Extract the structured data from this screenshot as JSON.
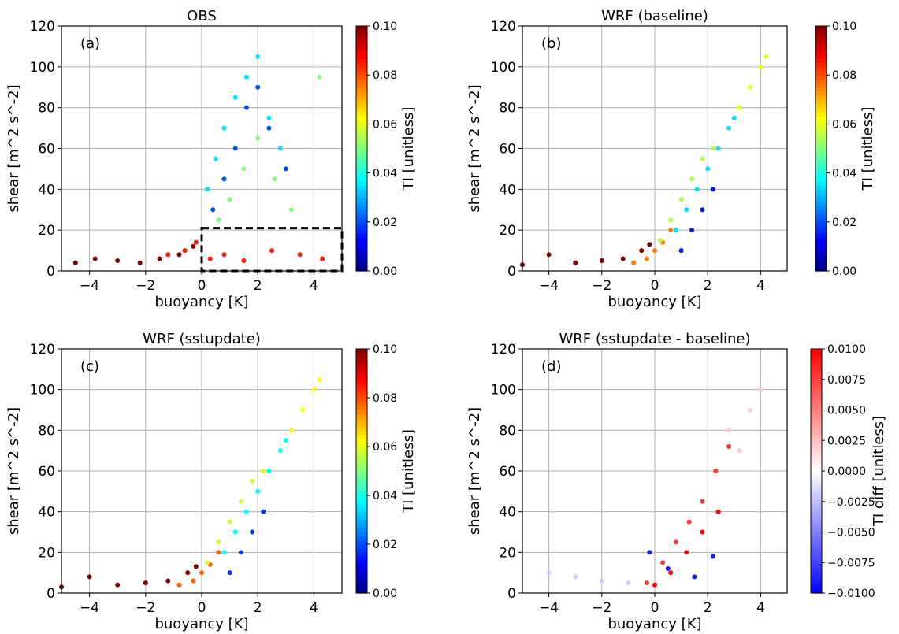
{
  "chart_data": [
    {
      "panel": "(a)",
      "title": "OBS",
      "type": "scatter",
      "xlabel": "buoyancy [K]",
      "ylabel": "shear [m^2 s^-2]",
      "xlim": [
        -5,
        5
      ],
      "ylim": [
        0,
        120
      ],
      "xticks": [
        "−4",
        "−2",
        "0",
        "2",
        "4"
      ],
      "yticks": [
        "0",
        "20",
        "40",
        "60",
        "80",
        "100",
        "120"
      ],
      "grid": true,
      "colorbar": {
        "label": "TI [unitless]",
        "min": 0.0,
        "max": 0.1,
        "colormap": "jet",
        "ticks": [
          "0.00",
          "0.02",
          "0.04",
          "0.06",
          "0.08",
          "0.10"
        ]
      },
      "annotation_box": {
        "x": [
          0,
          5
        ],
        "y": [
          0,
          21
        ],
        "style": "dashed"
      },
      "series": [
        {
          "x": [
            -4.5,
            -3.8,
            -3.0,
            -2.2,
            -1.5,
            -0.8,
            -0.3
          ],
          "y": [
            4,
            6,
            5,
            4,
            6,
            8,
            12
          ],
          "ti": 0.1
        },
        {
          "x": [
            -1.2,
            -0.6,
            -0.2,
            0.3,
            0.8,
            1.5,
            2.5,
            3.5,
            4.3
          ],
          "y": [
            8,
            10,
            14,
            6,
            8,
            5,
            10,
            8,
            6
          ],
          "ti": 0.085
        },
        {
          "x": [
            0.2,
            0.5,
            0.8,
            1.2,
            1.6,
            2.0,
            2.4,
            2.8
          ],
          "y": [
            40,
            55,
            70,
            85,
            95,
            105,
            75,
            60
          ],
          "ti": 0.035
        },
        {
          "x": [
            0.4,
            0.8,
            1.2,
            1.6,
            2.0,
            2.4,
            3.0
          ],
          "y": [
            30,
            45,
            60,
            80,
            90,
            70,
            50
          ],
          "ti": 0.02
        },
        {
          "x": [
            0.6,
            1.0,
            1.5,
            2.0,
            2.6,
            3.2,
            4.2
          ],
          "y": [
            25,
            35,
            50,
            65,
            45,
            30,
            95
          ],
          "ti": 0.05
        }
      ]
    },
    {
      "panel": "(b)",
      "title": "WRF (baseline)",
      "type": "scatter",
      "xlabel": "buoyancy [K]",
      "ylabel": "shear [m^2 s^-2]",
      "xlim": [
        -5,
        5
      ],
      "ylim": [
        0,
        120
      ],
      "xticks": [
        "−4",
        "−2",
        "0",
        "2",
        "4"
      ],
      "yticks": [
        "0",
        "20",
        "40",
        "60",
        "80",
        "100",
        "120"
      ],
      "grid": true,
      "colorbar": {
        "label": "TI [unitless]",
        "min": 0.0,
        "max": 0.1,
        "colormap": "jet",
        "ticks": [
          "0.00",
          "0.02",
          "0.04",
          "0.06",
          "0.08",
          "0.10"
        ]
      },
      "series": [
        {
          "x": [
            -5,
            -4.0,
            -3.0,
            -2.0,
            -1.2,
            -0.5,
            -0.2
          ],
          "y": [
            3,
            8,
            4,
            5,
            6,
            10,
            13
          ],
          "ti": 0.1
        },
        {
          "x": [
            -0.8,
            -0.3,
            0.0,
            0.3,
            0.6
          ],
          "y": [
            4,
            6,
            10,
            14,
            20
          ],
          "ti": 0.075
        },
        {
          "x": [
            0.2,
            0.6,
            1.0,
            1.4,
            1.8,
            2.2
          ],
          "y": [
            15,
            25,
            35,
            45,
            55,
            60
          ],
          "ti": 0.055
        },
        {
          "x": [
            0.8,
            1.2,
            1.6,
            2.0,
            2.4,
            2.8,
            3.0
          ],
          "y": [
            20,
            30,
            40,
            50,
            60,
            70,
            75
          ],
          "ti": 0.035
        },
        {
          "x": [
            1.0,
            1.4,
            1.8,
            2.2
          ],
          "y": [
            10,
            20,
            30,
            40
          ],
          "ti": 0.015
        },
        {
          "x": [
            3.2,
            3.6,
            4.0,
            4.2
          ],
          "y": [
            80,
            90,
            100,
            105
          ],
          "ti": 0.06
        }
      ]
    },
    {
      "panel": "(c)",
      "title": "WRF (sstupdate)",
      "type": "scatter",
      "xlabel": "buoyancy [K]",
      "ylabel": "shear [m^2 s^-2]",
      "xlim": [
        -5,
        5
      ],
      "ylim": [
        0,
        120
      ],
      "xticks": [
        "−4",
        "−2",
        "0",
        "2",
        "4"
      ],
      "yticks": [
        "0",
        "20",
        "40",
        "60",
        "80",
        "100",
        "120"
      ],
      "grid": true,
      "colorbar": {
        "label": "TI [unitless]",
        "min": 0.0,
        "max": 0.1,
        "colormap": "jet",
        "ticks": [
          "0.00",
          "0.02",
          "0.04",
          "0.06",
          "0.08",
          "0.10"
        ]
      },
      "series": [
        {
          "x": [
            -5,
            -4.0,
            -3.0,
            -2.0,
            -1.2,
            -0.5,
            -0.2
          ],
          "y": [
            3,
            8,
            4,
            5,
            6,
            10,
            13
          ],
          "ti": 0.1
        },
        {
          "x": [
            -0.8,
            -0.3,
            0.0,
            0.3,
            0.6
          ],
          "y": [
            4,
            6,
            10,
            14,
            20
          ],
          "ti": 0.078
        },
        {
          "x": [
            0.2,
            0.6,
            1.0,
            1.4,
            1.8,
            2.2
          ],
          "y": [
            15,
            25,
            35,
            45,
            55,
            60
          ],
          "ti": 0.058
        },
        {
          "x": [
            0.8,
            1.2,
            1.6,
            2.0,
            2.4,
            2.8,
            3.0
          ],
          "y": [
            20,
            30,
            40,
            50,
            60,
            70,
            75
          ],
          "ti": 0.038
        },
        {
          "x": [
            1.0,
            1.4,
            1.8,
            2.2
          ],
          "y": [
            10,
            20,
            30,
            40
          ],
          "ti": 0.018
        },
        {
          "x": [
            3.2,
            3.6,
            4.0,
            4.2
          ],
          "y": [
            80,
            90,
            100,
            105
          ],
          "ti": 0.062
        }
      ]
    },
    {
      "panel": "(d)",
      "title": "WRF (sstupdate - baseline)",
      "type": "scatter",
      "xlabel": "buoyancy [K]",
      "ylabel": "shear [m^2 s^-2]",
      "xlim": [
        -5,
        5
      ],
      "ylim": [
        0,
        120
      ],
      "xticks": [
        "−4",
        "−2",
        "0",
        "2",
        "4"
      ],
      "yticks": [
        "0",
        "20",
        "40",
        "60",
        "80",
        "100",
        "120"
      ],
      "grid": true,
      "colorbar": {
        "label": "TI diff [unitless]",
        "min": -0.01,
        "max": 0.01,
        "colormap": "bwr",
        "ticks": [
          "−0.0100",
          "−0.0075",
          "−0.0050",
          "−0.0025",
          "0.0000",
          "0.0025",
          "0.0050",
          "0.0075",
          "0.0100"
        ]
      },
      "series": [
        {
          "x": [
            -4.0,
            -3.0,
            -2.0,
            -1.0,
            0.0
          ],
          "y": [
            10,
            8,
            6,
            5,
            4
          ],
          "ti": -0.002
        },
        {
          "x": [
            -0.3,
            0.3,
            0.8,
            1.3,
            1.8,
            2.3,
            2.8
          ],
          "y": [
            5,
            15,
            25,
            35,
            45,
            60,
            72
          ],
          "ti": 0.008
        },
        {
          "x": [
            0.0,
            0.6,
            1.2,
            1.8,
            2.4
          ],
          "y": [
            4,
            10,
            20,
            30,
            40
          ],
          "ti": 0.01
        },
        {
          "x": [
            -0.2,
            0.5,
            1.5,
            2.2
          ],
          "y": [
            20,
            12,
            8,
            18
          ],
          "ti": -0.009
        },
        {
          "x": [
            2.8,
            3.2,
            3.6,
            4.0
          ],
          "y": [
            80,
            70,
            90,
            100
          ],
          "ti": 0.002
        }
      ]
    }
  ]
}
